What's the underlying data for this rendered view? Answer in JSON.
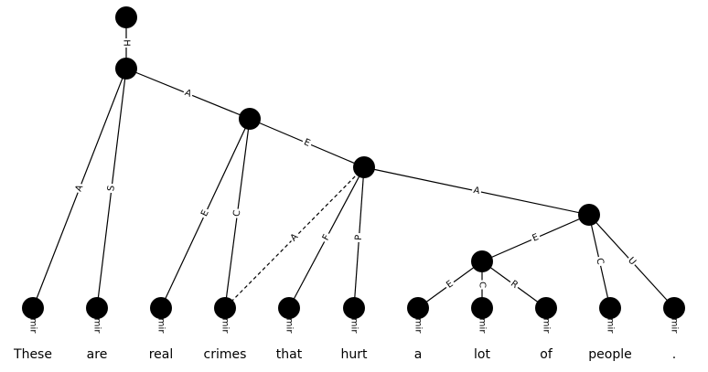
{
  "nodes": [
    {
      "id": "root"
    },
    {
      "id": "n1"
    },
    {
      "id": "n2"
    },
    {
      "id": "n3"
    },
    {
      "id": "n4"
    },
    {
      "id": "n5"
    },
    {
      "id": "t0",
      "word": "These",
      "tag": "Ermir"
    },
    {
      "id": "t1",
      "word": "are",
      "tag": "Ermir"
    },
    {
      "id": "t2",
      "word": "real",
      "tag": "Ermir"
    },
    {
      "id": "t3",
      "word": "crimes",
      "tag": "Ermir"
    },
    {
      "id": "t4",
      "word": "that",
      "tag": "Ermir"
    },
    {
      "id": "t5",
      "word": "hurt",
      "tag": "Ermir"
    },
    {
      "id": "t6",
      "word": "a",
      "tag": "Ermir"
    },
    {
      "id": "t7",
      "word": "lot",
      "tag": "Ermir"
    },
    {
      "id": "t8",
      "word": "of",
      "tag": "Ermir"
    },
    {
      "id": "t9",
      "word": "people",
      "tag": "Ermir"
    },
    {
      "id": "t10",
      "word": ".",
      "tag": "Ermir"
    }
  ],
  "edges": [
    {
      "from": "root",
      "to": "n1",
      "label": "H"
    },
    {
      "from": "n1",
      "to": "n2",
      "label": "A"
    },
    {
      "from": "n1",
      "to": "t0",
      "label": "A"
    },
    {
      "from": "n1",
      "to": "t1",
      "label": "S"
    },
    {
      "from": "n2",
      "to": "n3",
      "label": "E"
    },
    {
      "from": "n2",
      "to": "t2",
      "label": "E"
    },
    {
      "from": "n2",
      "to": "t3",
      "label": "C"
    },
    {
      "from": "n3",
      "to": "n4",
      "label": "A"
    },
    {
      "from": "n3",
      "to": "t3",
      "label": "A",
      "remote": true
    },
    {
      "from": "n3",
      "to": "t4",
      "label": "F"
    },
    {
      "from": "n3",
      "to": "t5",
      "label": "P"
    },
    {
      "from": "n4",
      "to": "n5",
      "label": "E"
    },
    {
      "from": "n4",
      "to": "t9",
      "label": "C"
    },
    {
      "from": "n4",
      "to": "t10",
      "label": "U"
    },
    {
      "from": "n5",
      "to": "t6",
      "label": "E"
    },
    {
      "from": "n5",
      "to": "t7",
      "label": "C"
    },
    {
      "from": "n5",
      "to": "t8",
      "label": "R"
    }
  ]
}
